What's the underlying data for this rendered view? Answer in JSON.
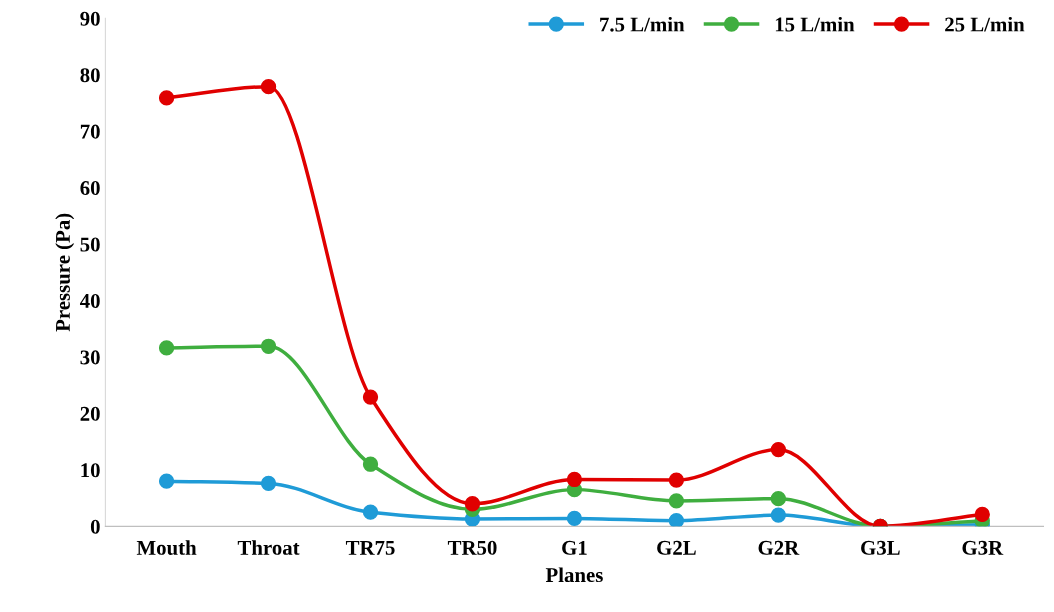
{
  "chart_data": {
    "type": "line",
    "xlabel": "Planes",
    "ylabel": "Pressure (Pa)",
    "categories": [
      "Mouth",
      "Throat",
      "TR75",
      "TR50",
      "G1",
      "G2L",
      "G2R",
      "G3L",
      "G3R"
    ],
    "series": [
      {
        "name": "7.5 L/min",
        "color": "#1f9bd7",
        "values": [
          8.0,
          7.6,
          2.5,
          1.3,
          1.4,
          1.0,
          2.0,
          0,
          0.3
        ]
      },
      {
        "name": "15 L/min",
        "color": "#3fae3f",
        "values": [
          31.6,
          31.9,
          11.0,
          3.0,
          6.5,
          4.5,
          4.9,
          0,
          1.0
        ]
      },
      {
        "name": "25 L/min",
        "color": "#e00000",
        "values": [
          75.9,
          77.9,
          22.9,
          4.0,
          8.3,
          8.2,
          13.6,
          0,
          2.1
        ]
      }
    ],
    "ylim": [
      0,
      90
    ],
    "yticks": [
      0,
      10,
      20,
      30,
      40,
      50,
      60,
      70,
      80,
      90
    ],
    "grid": false,
    "legend": "top right",
    "marker": "circle",
    "line_style": "solid"
  }
}
